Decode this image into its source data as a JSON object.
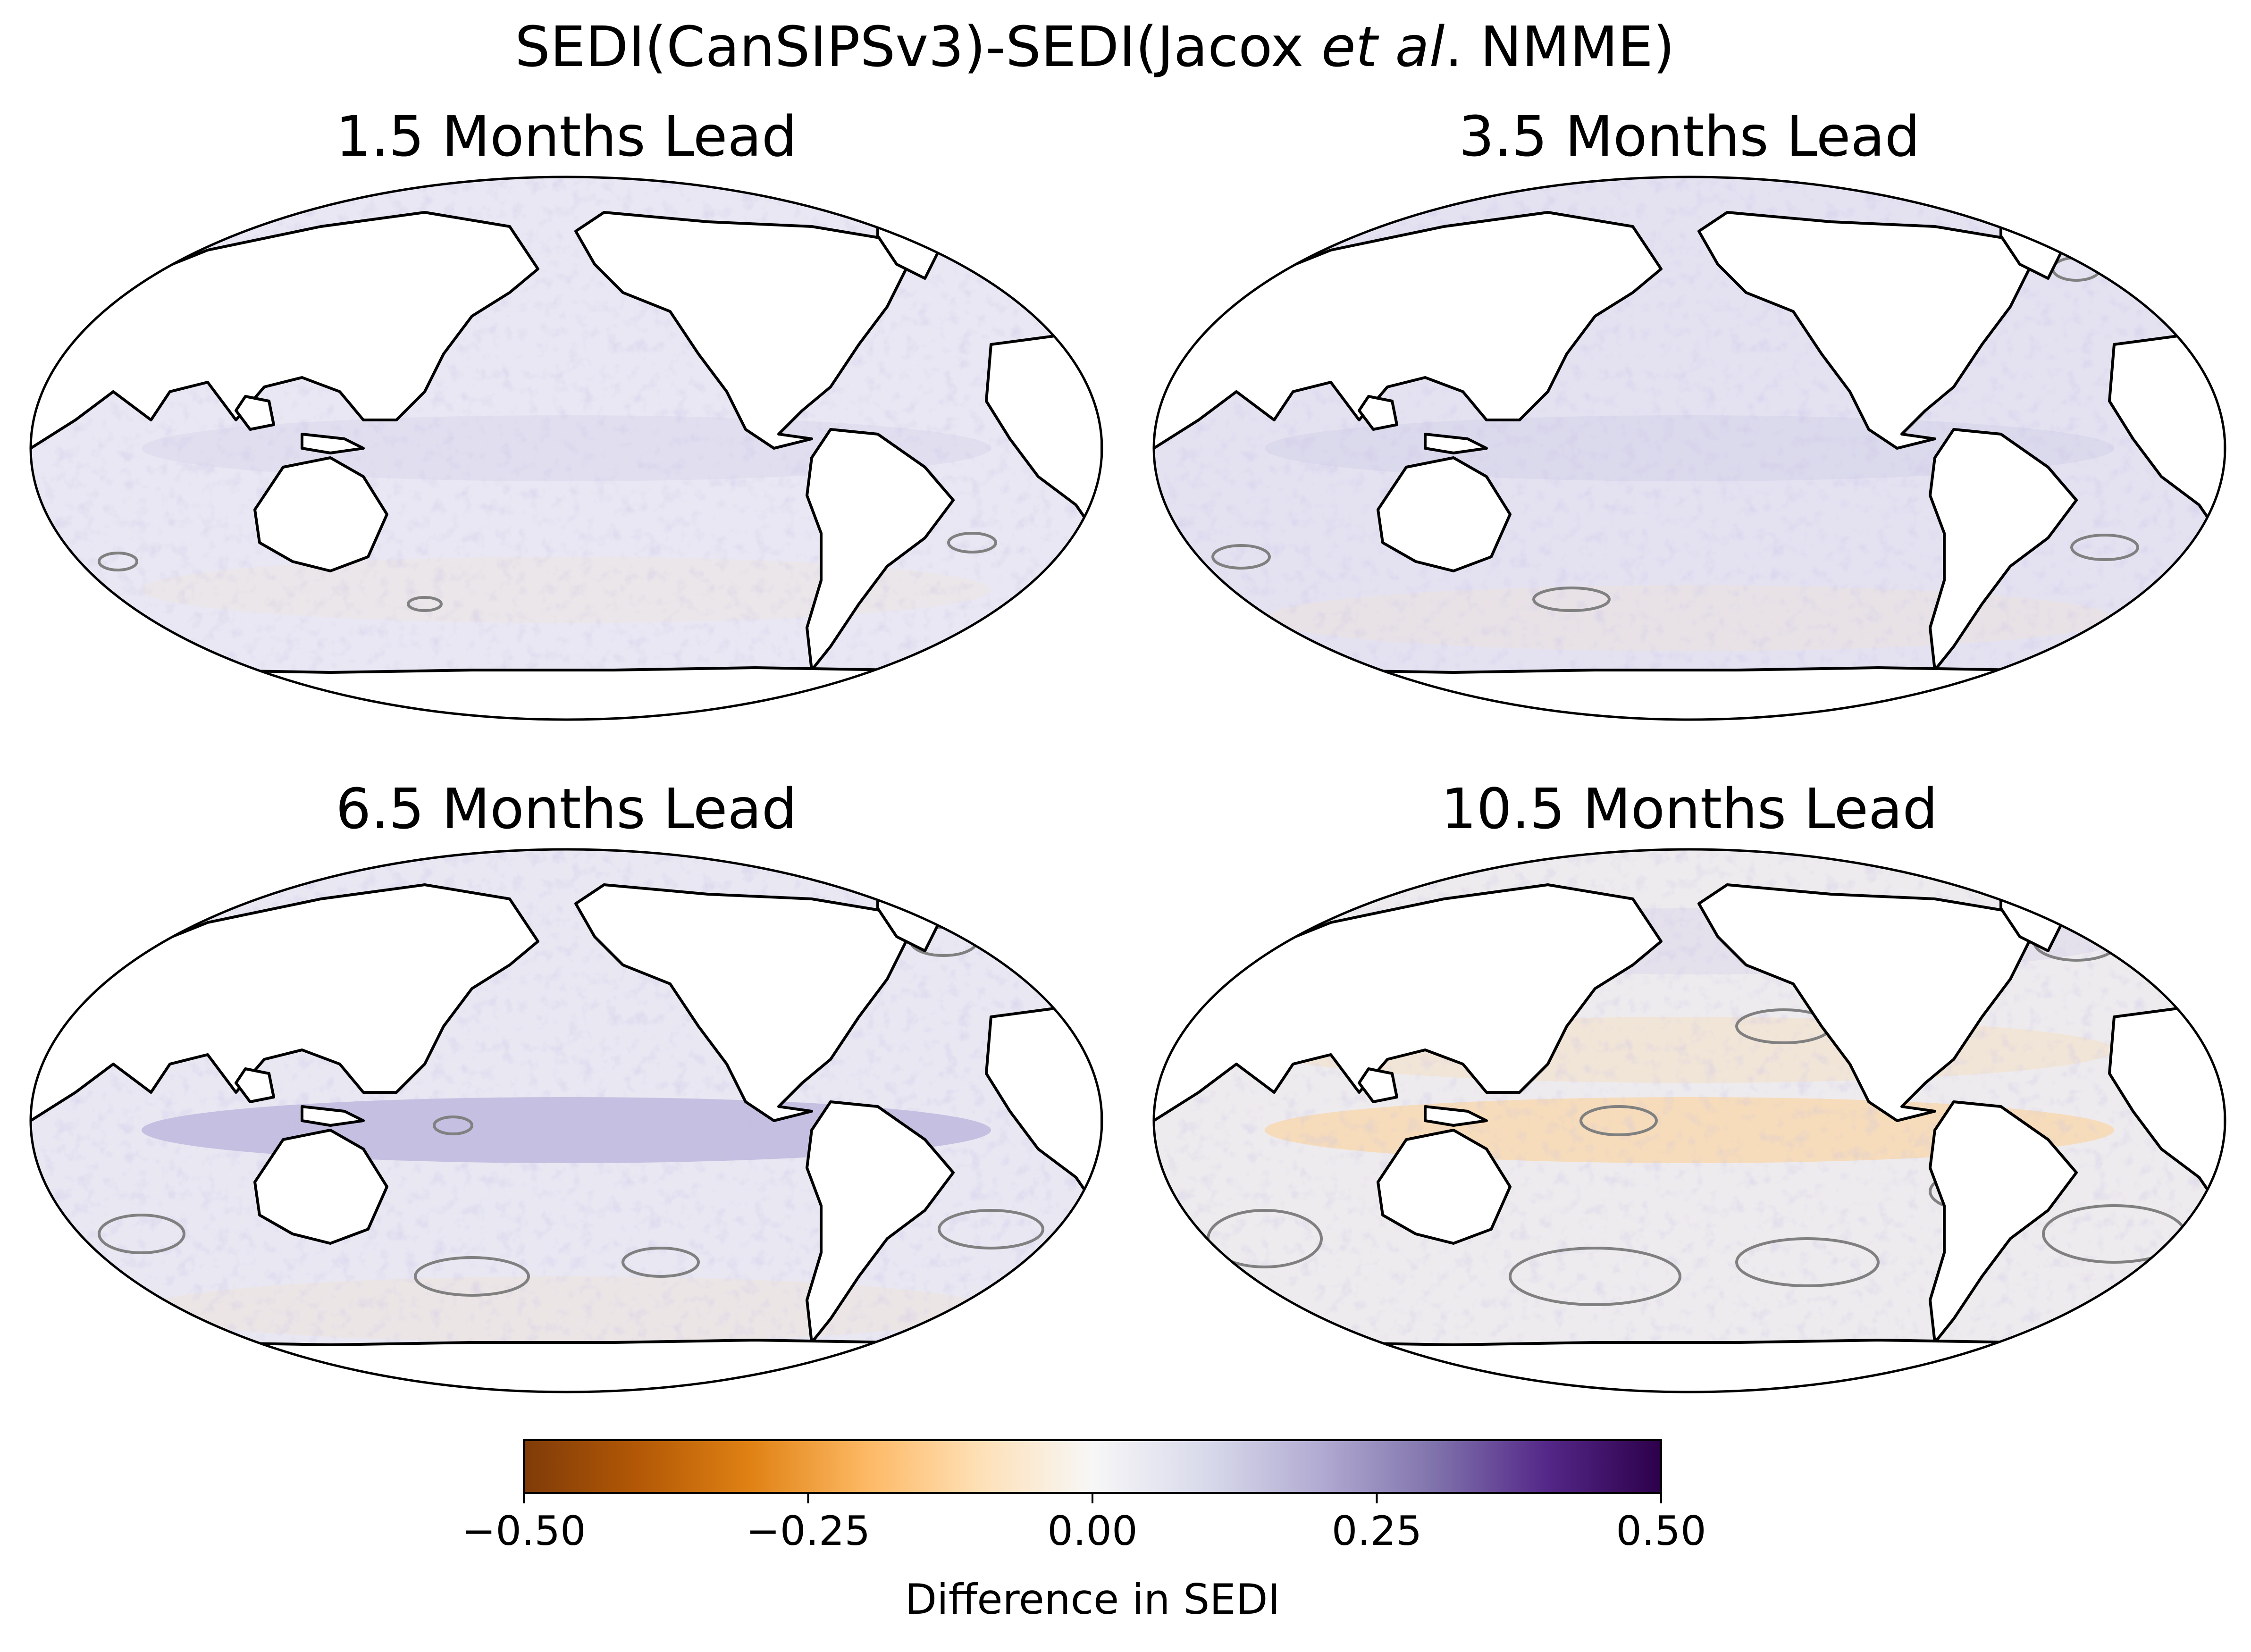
{
  "figure": {
    "title_prefix": "SEDI(CanSIPSv3)-SEDI(Jacox ",
    "title_italic": "et al",
    "title_suffix": ".  NMME)"
  },
  "panels": [
    {
      "title": "1.5 Months Lead",
      "field": "light purple and orange speckle, few grey contours"
    },
    {
      "title": "3.5 Months Lead",
      "field": "light purple, grey contours at high latitudes"
    },
    {
      "title": "6.5 Months Lead",
      "field": "purple equatorial Pacific band, more grey contours"
    },
    {
      "title": "10.5 Months Lead",
      "field": "orange equatorial bands, extensive grey contours"
    }
  ],
  "colorbar": {
    "label": "Difference in SEDI",
    "colormap": "PuOr",
    "min": -0.5,
    "max": 0.5,
    "ticks": [
      "−0.50",
      "−0.25",
      "0.00",
      "0.25",
      "0.50"
    ],
    "colors": [
      "#7f3b08",
      "#b35806",
      "#e08214",
      "#fdb863",
      "#fee0b6",
      "#f7f7f7",
      "#d8daeb",
      "#b2abd2",
      "#8073ac",
      "#542788",
      "#2d004b"
    ]
  },
  "legend_colors": {
    "land_fill": "#ffffff",
    "coastline": "#000000",
    "significance_contour": "#808080"
  }
}
